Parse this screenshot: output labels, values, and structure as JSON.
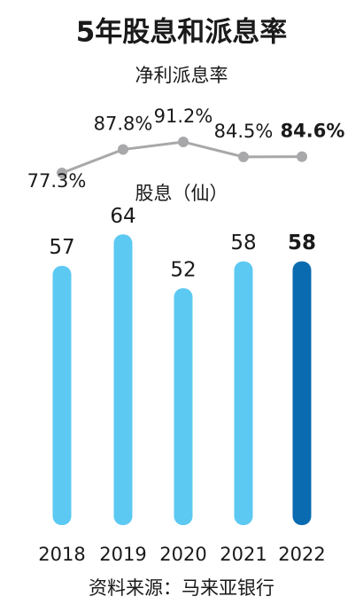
{
  "title": "5年股息和派息率",
  "source": "资料来源：马来亚银行",
  "chart_data": [
    {
      "type": "line",
      "title": "净利派息率",
      "color": "#a8a8aa",
      "values": [
        77.3,
        87.8,
        91.2,
        84.5,
        84.6
      ],
      "value_labels": [
        "77.3%",
        "87.8%",
        "91.2%",
        "84.5%",
        "84.6%"
      ],
      "ylim": [
        70,
        95
      ],
      "highlight_index": 4
    },
    {
      "type": "bar",
      "title": "股息（仙）",
      "categories": [
        "2018",
        "2019",
        "2020",
        "2021",
        "2022"
      ],
      "values": [
        57,
        64,
        52,
        58,
        58
      ],
      "colors": [
        "#5cc9f2",
        "#5cc9f2",
        "#5cc9f2",
        "#5cc9f2",
        "#0b6bb0"
      ],
      "ylim": [
        4,
        68
      ],
      "highlight_index": 4
    }
  ]
}
